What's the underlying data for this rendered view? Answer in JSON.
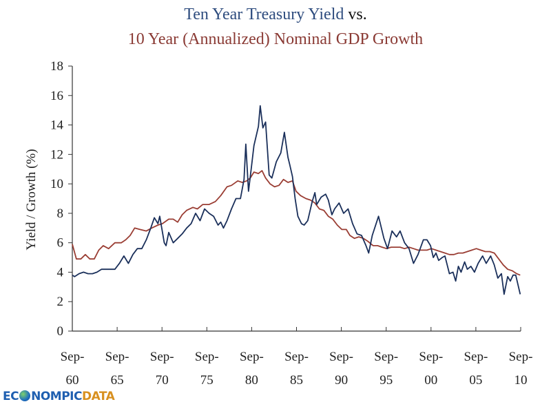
{
  "title": {
    "line1_part1": "Ten Year Treasury Yield",
    "line1_part2": "vs.",
    "line2": "10 Year (Annualized) Nominal GDP Growth"
  },
  "logo": {
    "part1": "EC",
    "part2": "NOMPIC",
    "part3": "DATA"
  },
  "colors": {
    "treasury": "#1a2f5a",
    "gdp": "#9a3d33",
    "title_blue": "#2e4c7e",
    "title_red": "#8a3a34"
  },
  "chart_data": {
    "type": "line",
    "title": "Ten Year Treasury Yield vs. 10 Year (Annualized) Nominal GDP Growth",
    "xlabel": "",
    "ylabel": "Yield / Growth (%)",
    "ylim": [
      0,
      18
    ],
    "yticks": [
      "0",
      "2",
      "4",
      "6",
      "8",
      "10",
      "12",
      "14",
      "16",
      "18"
    ],
    "xlim": [
      1960.75,
      2010.75
    ],
    "xticks": [
      {
        "v": 1960.75,
        "l1": "Sep-",
        "l2": "60"
      },
      {
        "v": 1965.75,
        "l1": "Sep-",
        "l2": "65"
      },
      {
        "v": 1970.75,
        "l1": "Sep-",
        "l2": "70"
      },
      {
        "v": 1975.75,
        "l1": "Sep-",
        "l2": "75"
      },
      {
        "v": 1980.75,
        "l1": "Sep-",
        "l2": "80"
      },
      {
        "v": 1985.75,
        "l1": "Sep-",
        "l2": "85"
      },
      {
        "v": 1990.75,
        "l1": "Sep-",
        "l2": "90"
      },
      {
        "v": 1995.75,
        "l1": "Sep-",
        "l2": "95"
      },
      {
        "v": 2000.75,
        "l1": "Sep-",
        "l2": "00"
      },
      {
        "v": 2005.75,
        "l1": "Sep-",
        "l2": "05"
      },
      {
        "v": 2010.75,
        "l1": "Sep-",
        "l2": "10"
      }
    ],
    "grid": false,
    "legend": "none",
    "series": [
      {
        "name": "Ten Year Treasury Yield",
        "x": [
          1960.75,
          1961,
          1961.5,
          1962,
          1962.5,
          1963,
          1963.5,
          1964,
          1965,
          1965.5,
          1966,
          1966.5,
          1967,
          1967.5,
          1968,
          1968.5,
          1969,
          1969.5,
          1969.9,
          1970.3,
          1970.5,
          1971,
          1971.2,
          1971.5,
          1972,
          1972.5,
          1973,
          1973.5,
          1974,
          1974.5,
          1975,
          1975.5,
          1976,
          1976.5,
          1977,
          1977.3,
          1977.6,
          1978,
          1978.5,
          1979,
          1979.5,
          1979.9,
          1980.1,
          1980.4,
          1980.7,
          1981,
          1981.5,
          1981.7,
          1982,
          1982.3,
          1982.7,
          1983,
          1983.5,
          1984,
          1984.4,
          1984.8,
          1985,
          1985.3,
          1985.6,
          1985.9,
          1986.3,
          1986.6,
          1987,
          1987.5,
          1987.8,
          1988,
          1988.5,
          1989,
          1989.3,
          1989.7,
          1990,
          1990.5,
          1991,
          1991.5,
          1992,
          1992.5,
          1993,
          1993.5,
          1993.8,
          1994.2,
          1994.9,
          1995.5,
          1995.9,
          1996.4,
          1996.9,
          1997.3,
          1997.8,
          1998.3,
          1998.8,
          1999.3,
          1999.9,
          2000.3,
          2000.7,
          2001,
          2001.3,
          2001.6,
          2002,
          2002.3,
          2002.8,
          2003.2,
          2003.5,
          2003.8,
          2004.1,
          2004.5,
          2004.8,
          2005.2,
          2005.6,
          2006,
          2006.5,
          2006.9,
          2007.4,
          2007.8,
          2008.2,
          2008.6,
          2008.9,
          2009.3,
          2009.6,
          2009.9,
          2010.2,
          2010.7
        ],
        "values": [
          3.8,
          3.7,
          3.9,
          4.0,
          3.9,
          3.9,
          4.0,
          4.2,
          4.2,
          4.2,
          4.6,
          5.1,
          4.6,
          5.2,
          5.6,
          5.6,
          6.2,
          7.0,
          7.7,
          7.3,
          7.8,
          6.0,
          5.8,
          6.7,
          6.0,
          6.3,
          6.6,
          7.0,
          7.3,
          8.0,
          7.5,
          8.3,
          8.0,
          7.8,
          7.2,
          7.4,
          7.0,
          7.5,
          8.3,
          9.0,
          9.0,
          10.3,
          12.7,
          9.5,
          11.0,
          12.6,
          13.9,
          15.3,
          13.8,
          14.2,
          10.6,
          10.4,
          11.5,
          12.1,
          13.5,
          11.8,
          11.3,
          10.5,
          9.0,
          7.8,
          7.3,
          7.2,
          7.5,
          8.8,
          9.4,
          8.6,
          9.1,
          9.3,
          8.9,
          7.9,
          8.3,
          8.7,
          8.0,
          8.3,
          7.3,
          6.6,
          6.5,
          5.8,
          5.3,
          6.5,
          7.8,
          6.3,
          5.6,
          6.8,
          6.4,
          6.8,
          6.0,
          5.6,
          4.6,
          5.2,
          6.2,
          6.2,
          5.8,
          5.0,
          5.3,
          4.8,
          5.0,
          5.1,
          3.9,
          4.0,
          3.4,
          4.4,
          4.0,
          4.7,
          4.2,
          4.4,
          4.0,
          4.6,
          5.1,
          4.6,
          5.1,
          4.5,
          3.6,
          3.9,
          2.5,
          3.7,
          3.4,
          3.8,
          3.8,
          2.5
        ]
      },
      {
        "name": "10 Year (Annualized) Nominal GDP Growth",
        "x": [
          1960.75,
          1961.2,
          1961.7,
          1962.2,
          1962.7,
          1963.2,
          1963.7,
          1964.2,
          1964.8,
          1965.5,
          1966.2,
          1966.7,
          1967.2,
          1967.7,
          1968.3,
          1969,
          1969.6,
          1970.3,
          1970.8,
          1971.5,
          1972,
          1972.5,
          1973,
          1973.5,
          1974.2,
          1974.7,
          1975.3,
          1976,
          1976.7,
          1977.3,
          1978,
          1978.5,
          1979.2,
          1979.7,
          1980.2,
          1980.6,
          1981,
          1981.5,
          1981.9,
          1982.3,
          1982.8,
          1983.3,
          1983.8,
          1984.3,
          1984.8,
          1985.3,
          1985.7,
          1986.2,
          1986.8,
          1987.3,
          1987.8,
          1988.3,
          1988.8,
          1989.3,
          1989.8,
          1990.3,
          1990.8,
          1991.3,
          1991.7,
          1992.2,
          1992.7,
          1993.2,
          1993.7,
          1994.3,
          1994.8,
          1995.3,
          1995.8,
          1996.3,
          1996.8,
          1997.3,
          1997.8,
          1998.3,
          1998.8,
          1999.3,
          1999.8,
          2000.3,
          2000.8,
          2001.3,
          2001.8,
          2002.3,
          2002.8,
          2003.3,
          2003.8,
          2004.3,
          2004.8,
          2005.3,
          2005.8,
          2006.3,
          2006.8,
          2007.3,
          2007.8,
          2008.3,
          2008.8,
          2009.3,
          2009.8,
          2010.3,
          2010.7
        ],
        "values": [
          5.9,
          4.9,
          4.9,
          5.2,
          4.9,
          4.9,
          5.5,
          5.8,
          5.6,
          6.0,
          6.0,
          6.2,
          6.5,
          7.0,
          6.9,
          6.8,
          7.0,
          7.2,
          7.3,
          7.6,
          7.6,
          7.4,
          7.9,
          8.2,
          8.4,
          8.3,
          8.6,
          8.6,
          8.8,
          9.2,
          9.8,
          9.9,
          10.2,
          10.1,
          10.2,
          10.4,
          10.8,
          10.7,
          10.9,
          10.4,
          10.0,
          9.8,
          9.9,
          10.3,
          10.1,
          10.2,
          9.5,
          9.2,
          9.0,
          8.9,
          8.7,
          8.3,
          8.2,
          7.8,
          7.6,
          7.2,
          6.9,
          6.9,
          6.5,
          6.3,
          6.4,
          6.3,
          6.1,
          5.8,
          5.8,
          5.7,
          5.6,
          5.7,
          5.7,
          5.7,
          5.6,
          5.7,
          5.6,
          5.5,
          5.5,
          5.5,
          5.6,
          5.5,
          5.4,
          5.3,
          5.2,
          5.2,
          5.3,
          5.3,
          5.4,
          5.5,
          5.6,
          5.5,
          5.4,
          5.4,
          5.3,
          4.9,
          4.5,
          4.2,
          4.1,
          3.9,
          3.8
        ]
      }
    ]
  }
}
